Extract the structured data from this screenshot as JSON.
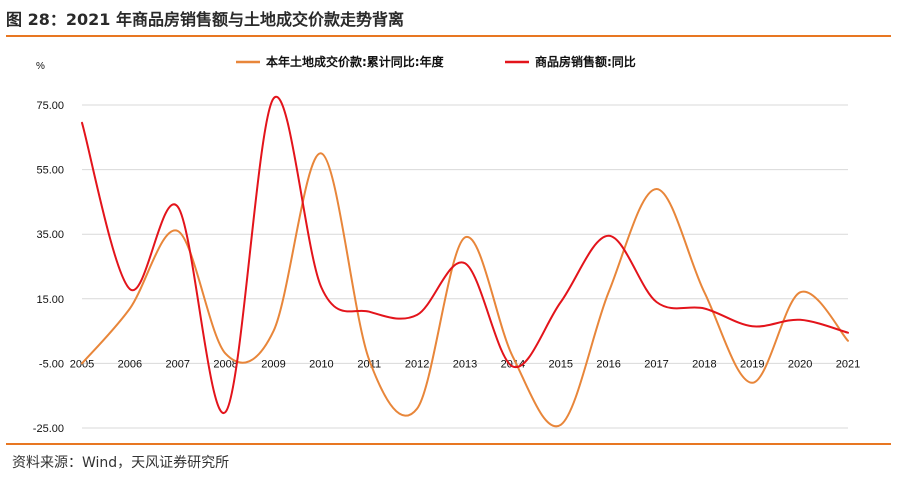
{
  "figure": {
    "title": "图 28：2021 年商品房销售额与土地成交价款走势背离",
    "source": "资料来源：Wind，天风证券研究所"
  },
  "chart_data": {
    "type": "line",
    "title": "",
    "xlabel": "",
    "ylabel": "%",
    "categories": [
      "2005",
      "2006",
      "2007",
      "2008",
      "2009",
      "2010",
      "2011",
      "2012",
      "2013",
      "2014",
      "2015",
      "2016",
      "2017",
      "2018",
      "2019",
      "2020",
      "2021"
    ],
    "yticks": [
      "75.00",
      "55.00",
      "35.00",
      "15.00",
      "-5.00",
      "-25.00"
    ],
    "ylim": [
      -25,
      75
    ],
    "grid": true,
    "legend_position": "top",
    "series": [
      {
        "name": "本年土地成交价款:累计同比:年度",
        "color": "#e8863a",
        "values": [
          -5,
          12,
          36,
          -2,
          5,
          60,
          -4,
          -19,
          34,
          -3,
          -24,
          17,
          49,
          17,
          -11,
          17,
          2
        ]
      },
      {
        "name": "商品房销售额:同比",
        "color": "#e3141b",
        "values": [
          69.5,
          18,
          43.5,
          -20,
          77,
          18.5,
          11,
          10,
          26,
          -6,
          14,
          34.5,
          14,
          12,
          6.5,
          8.5,
          4.5
        ]
      }
    ]
  }
}
